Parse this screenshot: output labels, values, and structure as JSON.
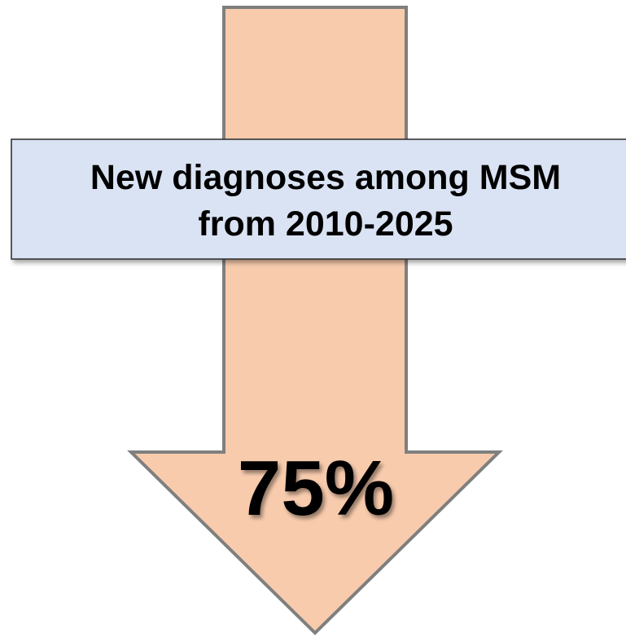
{
  "box": {
    "lines": [
      "New diagnoses among MSM",
      "from 2010-2025"
    ]
  },
  "arrow": {
    "label": "75%"
  }
}
